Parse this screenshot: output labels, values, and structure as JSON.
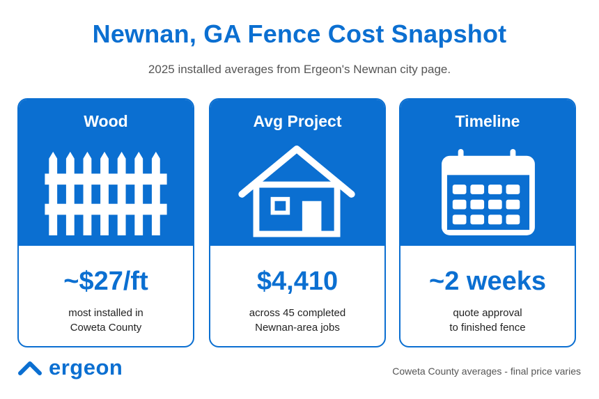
{
  "header": {
    "title": "Newnan, GA Fence Cost Snapshot",
    "subtitle": "2025 installed averages from Ergeon's Newnan city page."
  },
  "cards": [
    {
      "heading": "Wood",
      "icon": "picket-fence-icon",
      "value": "~$27/ft",
      "desc_line1": "most installed in",
      "desc_line2": "Coweta County"
    },
    {
      "heading": "Avg Project",
      "icon": "house-icon",
      "value": "$4,410",
      "desc_line1": "across 45 completed",
      "desc_line2": "Newnan-area jobs"
    },
    {
      "heading": "Timeline",
      "icon": "calendar-icon",
      "value": "~2 weeks",
      "desc_line1": "quote approval",
      "desc_line2": "to finished fence"
    }
  ],
  "footer": {
    "logo_text": "ergeon",
    "logo_icon": "ergeon-chevron-icon",
    "note": "Coweta County averages - final price varies"
  },
  "colors": {
    "brand_blue": "#0b6fd1",
    "text_dark": "#222222",
    "text_gray": "#555555"
  }
}
